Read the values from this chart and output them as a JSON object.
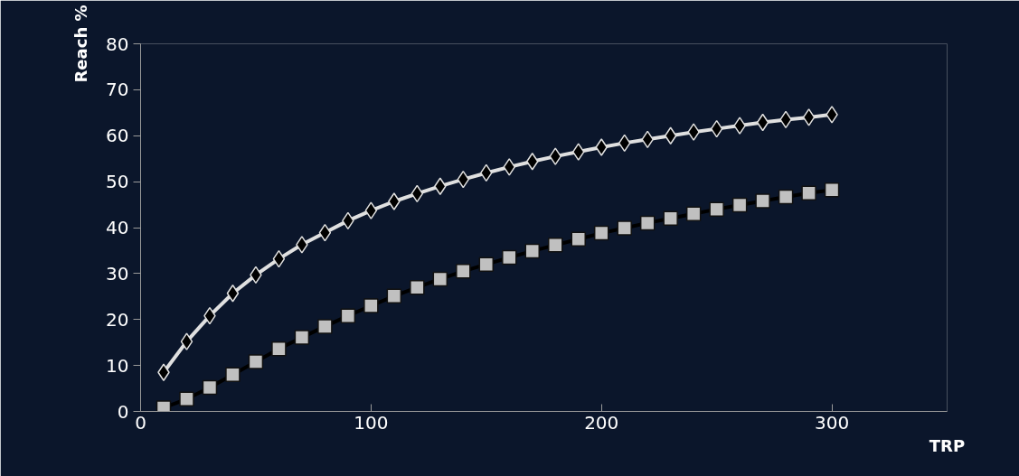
{
  "chart_data": {
    "type": "line",
    "xlabel": "TRP",
    "ylabel": "Reach %",
    "x": [
      10,
      20,
      30,
      40,
      50,
      60,
      70,
      80,
      90,
      100,
      110,
      120,
      130,
      140,
      150,
      160,
      170,
      180,
      190,
      200,
      210,
      220,
      230,
      240,
      250,
      260,
      270,
      280,
      290,
      300
    ],
    "series": [
      {
        "color": "#e0e0e0",
        "marker": "diamond",
        "values": [
          8.5,
          15.2,
          20.8,
          25.7,
          29.7,
          33.2,
          36.3,
          38.9,
          41.5,
          43.7,
          45.7,
          47.4,
          49,
          50.5,
          51.9,
          53.2,
          54.4,
          55.5,
          56.5,
          57.5,
          58.4,
          59.2,
          60,
          60.8,
          61.5,
          62.2,
          62.9,
          63.5,
          64,
          64.6
        ]
      },
      {
        "color": "#000000",
        "marker": "square",
        "values": [
          0.8,
          2.7,
          5.2,
          8,
          10.8,
          13.6,
          16.1,
          18.5,
          20.8,
          23,
          25.1,
          27,
          28.8,
          30.5,
          32,
          33.5,
          34.9,
          36.2,
          37.5,
          38.8,
          39.9,
          41,
          42,
          43,
          44,
          44.9,
          45.8,
          46.7,
          47.5,
          48.2
        ]
      }
    ],
    "xlim": [
      0,
      350
    ],
    "xticks": [
      0,
      100,
      200,
      300
    ],
    "ylim": [
      0,
      80
    ],
    "yticks": [
      0,
      10,
      20,
      30,
      40,
      50,
      60,
      70,
      80
    ],
    "grid": false
  }
}
